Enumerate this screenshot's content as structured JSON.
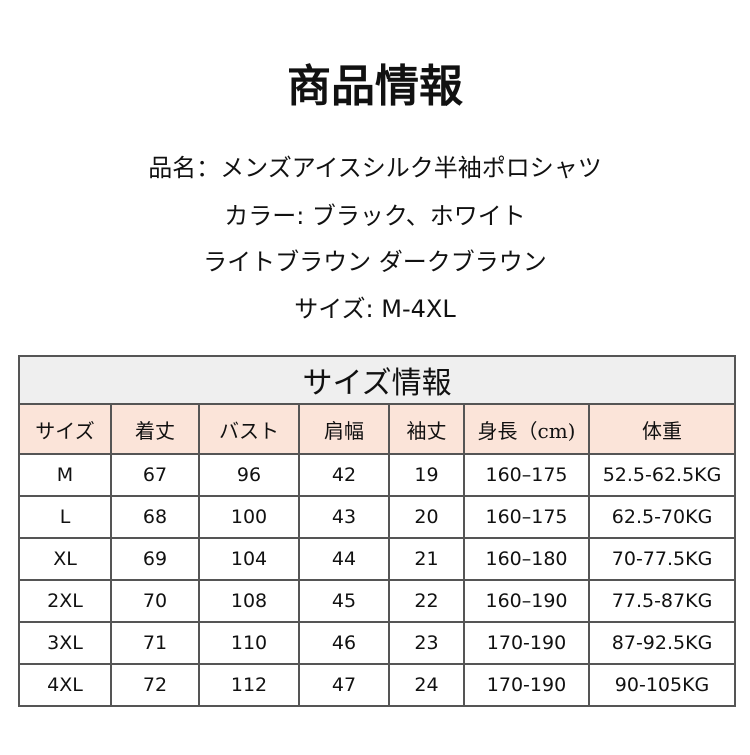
{
  "header": {
    "title": "商品情報"
  },
  "info": [
    "品名：メンズアイスシルク半袖ポロシャツ",
    "カラー: ブラック、ホワイト",
    "ライトブラウン ダークブラウン",
    "サイズ: M-4XL"
  ],
  "table": {
    "title": "サイズ情報",
    "columns": [
      "サイズ",
      "着丈",
      "バスト",
      "肩幅",
      "袖丈",
      "身長（cm)",
      "体重"
    ],
    "rows": [
      [
        "M",
        "67",
        "96",
        "42",
        "19",
        "160–175",
        "52.5-62.5KG"
      ],
      [
        "L",
        "68",
        "100",
        "43",
        "20",
        "160–175",
        "62.5-70KG"
      ],
      [
        "XL",
        "69",
        "104",
        "44",
        "21",
        "160–180",
        "70-77.5KG"
      ],
      [
        "2XL",
        "70",
        "108",
        "45",
        "22",
        "160–190",
        "77.5-87KG"
      ],
      [
        "3XL",
        "71",
        "110",
        "46",
        "23",
        "170-190",
        "87-92.5KG"
      ],
      [
        "4XL",
        "72",
        "112",
        "47",
        "24",
        "170-190",
        "90-105KG"
      ]
    ]
  }
}
